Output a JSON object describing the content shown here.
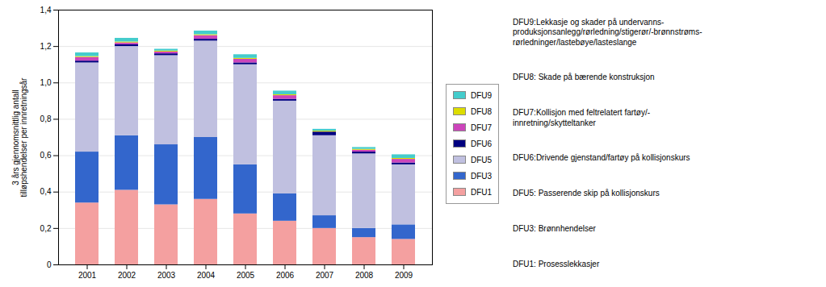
{
  "chart_data": {
    "type": "bar",
    "stacked": true,
    "categories": [
      "2001",
      "2002",
      "2003",
      "2004",
      "2005",
      "2006",
      "2007",
      "2008",
      "2009"
    ],
    "series": [
      {
        "name": "DFU1",
        "color": "#F4A0A0",
        "values": [
          0.34,
          0.41,
          0.33,
          0.36,
          0.28,
          0.24,
          0.2,
          0.15,
          0.14
        ]
      },
      {
        "name": "DFU3",
        "color": "#3366CC",
        "values": [
          0.28,
          0.3,
          0.33,
          0.34,
          0.27,
          0.15,
          0.07,
          0.05,
          0.08
        ]
      },
      {
        "name": "DFU5",
        "color": "#C0C0E0",
        "values": [
          0.49,
          0.49,
          0.49,
          0.53,
          0.55,
          0.51,
          0.44,
          0.41,
          0.33
        ]
      },
      {
        "name": "DFU6",
        "color": "#000080",
        "values": [
          0.01,
          0.01,
          0.01,
          0.01,
          0.01,
          0.01,
          0.02,
          0.01,
          0.01
        ]
      },
      {
        "name": "DFU7",
        "color": "#CC44BB",
        "values": [
          0.02,
          0.01,
          0.01,
          0.02,
          0.02,
          0.02,
          0.0,
          0.01,
          0.02
        ]
      },
      {
        "name": "DFU8",
        "color": "#DDDD00",
        "values": [
          0.005,
          0.005,
          0.005,
          0.005,
          0.005,
          0.005,
          0.005,
          0.005,
          0.005
        ]
      },
      {
        "name": "DFU9",
        "color": "#44CCCC",
        "values": [
          0.02,
          0.02,
          0.01,
          0.02,
          0.02,
          0.02,
          0.01,
          0.01,
          0.02
        ]
      }
    ],
    "ylabel": "3 års gjennomsnittlig antall\ntilløpshendelser per innretningsår",
    "ylim": [
      0,
      1.4
    ],
    "yticks": [
      0,
      {
        "value": 0.2,
        "label": "0,2"
      },
      {
        "value": 0.4,
        "label": "0,4"
      },
      {
        "value": 0.6,
        "label": "0,6"
      },
      {
        "value": 0.8,
        "label": "0,8"
      },
      {
        "value": 1.0,
        "label": "1,0"
      },
      {
        "value": 1.2,
        "label": "1,2"
      },
      {
        "value": 1.4,
        "label": "1,4"
      }
    ],
    "grid": true,
    "legend": "right",
    "annotations": [
      "DFU9:Lekkasje og skader på undervanns-\nproduksjonsanlegg/rørledning/stigerør/-brønnstrøms-\nrørledninger/lastebøye/lasteslange",
      "DFU8: Skade på bærende konstruksjon",
      "DFU7:Kollisjon med feltrelatert fartøy/-\ninnretning/skytteltanker",
      "DFU6:Drivende gjenstand/fartøy på kollisjonskurs",
      "DFU5: Passerende skip på kollisjonskurs",
      "DFU3: Brønnhendelser",
      "DFU1: Prosesslekkasjer"
    ]
  }
}
